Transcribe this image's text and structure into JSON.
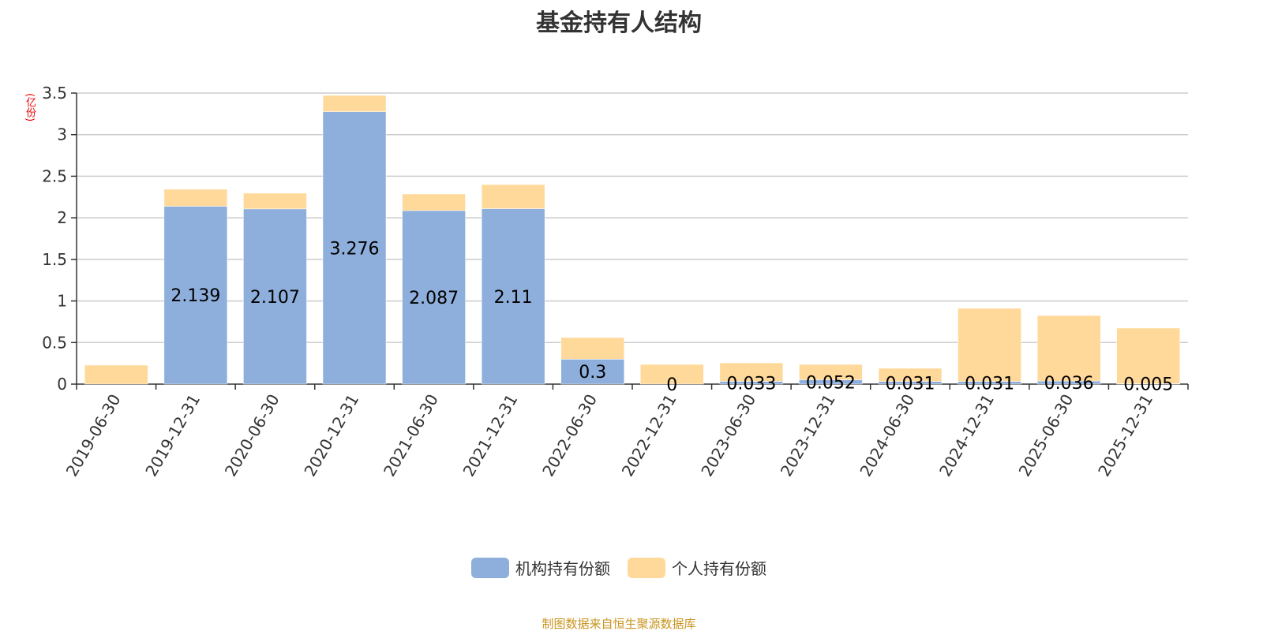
{
  "title": "基金持有人结构",
  "unit": "(亿份)",
  "source": "制图数据来自恒生聚源数据库",
  "chart_data": {
    "type": "bar",
    "stacked": true,
    "title": "基金持有人结构",
    "ylabel": "(亿份)",
    "ylim": [
      0,
      3.5
    ],
    "yticks": [
      "0",
      "0.5",
      "1",
      "1.5",
      "2",
      "2.5",
      "3",
      "3.5"
    ],
    "grid": true,
    "legend_position": "bottom",
    "categories": [
      "2019-06-30",
      "2019-12-31",
      "2020-06-30",
      "2020-12-31",
      "2021-06-30",
      "2021-12-31",
      "2022-06-30",
      "2022-12-31",
      "2023-06-30",
      "2023-12-31",
      "2024-06-30",
      "2024-12-31",
      "2025-06-30",
      "2025-12-31"
    ],
    "series": [
      {
        "name": "机构持有份额",
        "color": "#8eaedb",
        "values": [
          null,
          2.139,
          2.107,
          3.276,
          2.087,
          2.11,
          0.3,
          0,
          0.033,
          0.052,
          0.031,
          0.031,
          0.036,
          0.005
        ]
      },
      {
        "name": "个人持有份额",
        "color": "#ffd99a",
        "values": [
          0.228,
          0.204,
          0.189,
          0.196,
          0.199,
          0.29,
          0.26,
          0.237,
          0.223,
          0.185,
          0.159,
          0.88,
          0.789,
          0.669
        ]
      }
    ]
  }
}
